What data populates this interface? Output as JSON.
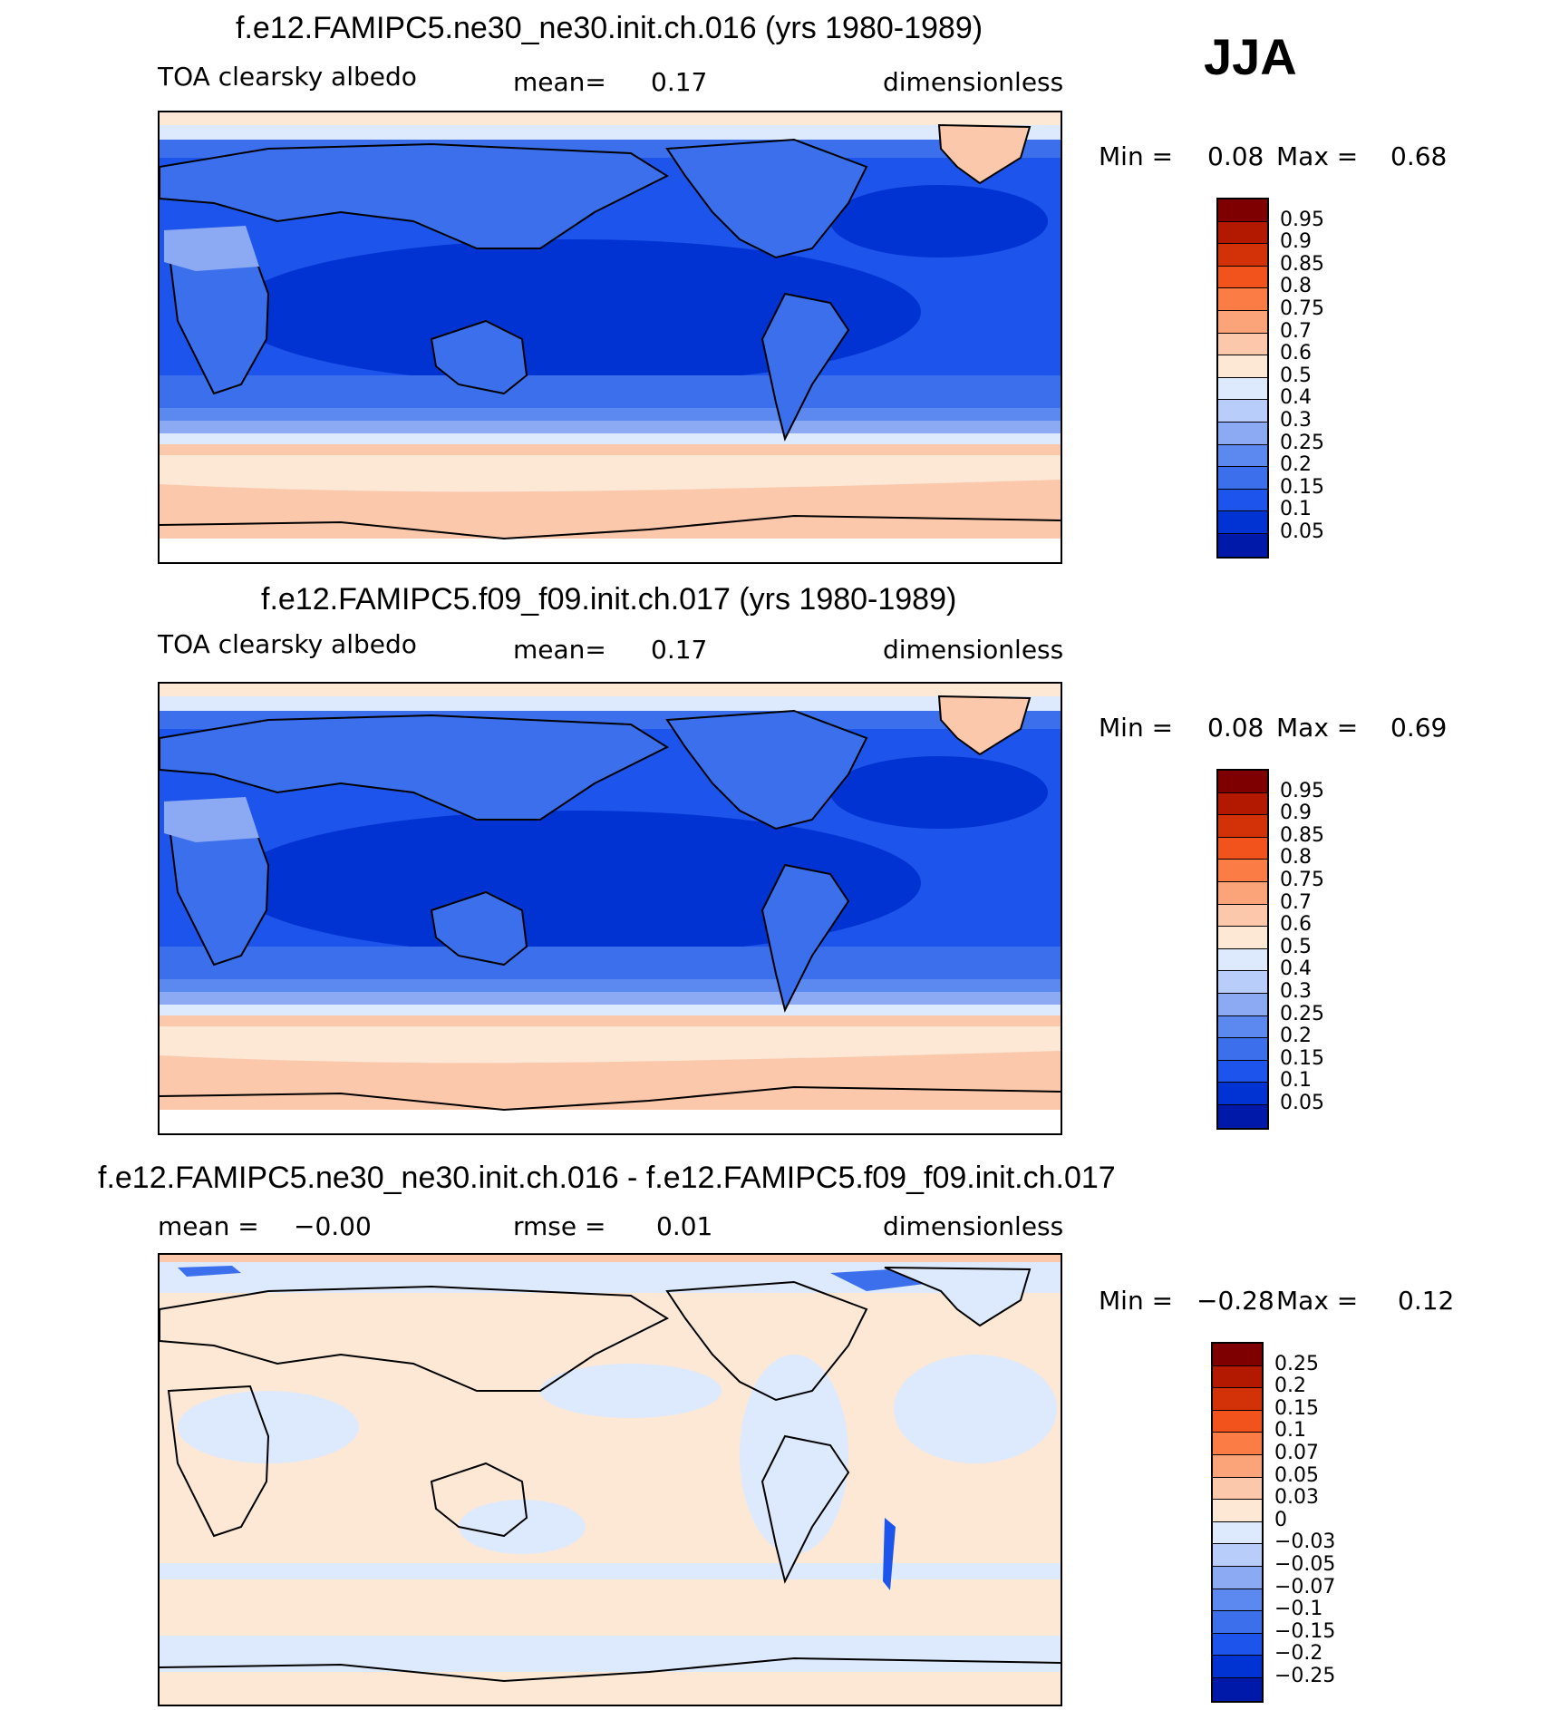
{
  "season": "JJA",
  "palettes": {
    "abs": [
      "#00007f",
      "#0019a8",
      "#0033d1",
      "#1d55ec",
      "#3b6fec",
      "#5b89ef",
      "#8caaf4",
      "#b8cdfa",
      "#dde9fd",
      "#fde8d6",
      "#fbc8ac",
      "#fba47a",
      "#fb7c44",
      "#f2531c",
      "#d33108",
      "#b31800",
      "#7f0000"
    ],
    "diff": [
      "#00007f",
      "#0019a8",
      "#0033d1",
      "#1d55ec",
      "#3b6fec",
      "#5b89ef",
      "#8caaf4",
      "#b8cdfa",
      "#dde9fd",
      "#fde8d6",
      "#fbc8ac",
      "#fba47a",
      "#fb7c44",
      "#f2531c",
      "#d33108",
      "#b31800",
      "#7f0000"
    ]
  },
  "panels": [
    {
      "title": "f.e12.FAMIPC5.ne30_ne30.init.ch.016 (yrs 1980-1989)",
      "variable": "TOA clearsky albedo",
      "stat1_label": "mean=",
      "stat1_value": "0.17",
      "stat2_label": "",
      "stat2_value": "",
      "units": "dimensionless",
      "min_label": "Min =",
      "min_value": "0.08",
      "max_label": "Max =",
      "max_value": "0.68",
      "levels": [
        "0.95",
        "0.9",
        "0.85",
        "0.8",
        "0.75",
        "0.7",
        "0.6",
        "0.5",
        "0.4",
        "0.3",
        "0.25",
        "0.2",
        "0.15",
        "0.1",
        "0.05"
      ]
    },
    {
      "title": "f.e12.FAMIPC5.f09_f09.init.ch.017 (yrs 1980-1989)",
      "variable": "TOA clearsky albedo",
      "stat1_label": "mean=",
      "stat1_value": "0.17",
      "stat2_label": "",
      "stat2_value": "",
      "units": "dimensionless",
      "min_label": "Min =",
      "min_value": "0.08",
      "max_label": "Max =",
      "max_value": "0.69",
      "levels": [
        "0.95",
        "0.9",
        "0.85",
        "0.8",
        "0.75",
        "0.7",
        "0.6",
        "0.5",
        "0.4",
        "0.3",
        "0.25",
        "0.2",
        "0.15",
        "0.1",
        "0.05"
      ]
    },
    {
      "title": "f.e12.FAMIPC5.ne30_ne30.init.ch.016 - f.e12.FAMIPC5.f09_f09.init.ch.017",
      "variable": "",
      "stat1_label": "mean =",
      "stat1_value": "−0.00",
      "stat2_label": "rmse =",
      "stat2_value": "0.01",
      "units": "dimensionless",
      "min_label": "Min =",
      "min_value": "−0.28",
      "max_label": "Max =",
      "max_value": "0.12",
      "levels": [
        "0.25",
        "0.2",
        "0.15",
        "0.1",
        "0.07",
        "0.05",
        "0.03",
        "0",
        "−0.03",
        "−0.05",
        "−0.07",
        "−0.1",
        "−0.15",
        "−0.2",
        "−0.25"
      ]
    }
  ]
}
